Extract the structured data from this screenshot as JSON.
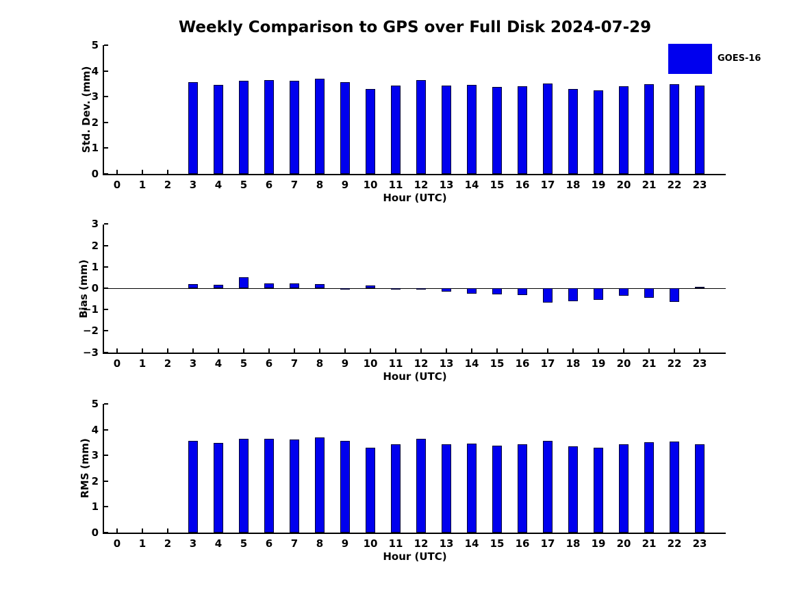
{
  "title": "Weekly Comparison to GPS over Full Disk 2024-07-29",
  "legend": {
    "label": "GOES-16",
    "position": "top-right"
  },
  "colors": {
    "bar": "#0000EE",
    "bar_edge": "#000033",
    "axis": "#000000",
    "background": "#FFFFFF"
  },
  "chart_data": [
    {
      "type": "bar",
      "name": "std-dev-panel",
      "title": "",
      "xlabel": "Hour (UTC)",
      "ylabel": "Std. Dev. (mm)",
      "ylim": [
        0,
        5
      ],
      "yticks": [
        0,
        1,
        2,
        3,
        4,
        5
      ],
      "grid": false,
      "zero_line": false,
      "categories": [
        0,
        1,
        2,
        3,
        4,
        5,
        6,
        7,
        8,
        9,
        10,
        11,
        12,
        13,
        14,
        15,
        16,
        17,
        18,
        19,
        20,
        21,
        22,
        23
      ],
      "values": [
        null,
        null,
        null,
        3.57,
        3.47,
        3.62,
        3.65,
        3.62,
        3.7,
        3.57,
        3.3,
        3.43,
        3.64,
        3.43,
        3.46,
        3.37,
        3.4,
        3.51,
        3.3,
        3.25,
        3.4,
        3.48,
        3.48,
        3.43
      ]
    },
    {
      "type": "bar",
      "name": "bias-panel",
      "title": "",
      "xlabel": "Hour (UTC)",
      "ylabel": "Bias (mm)",
      "ylim": [
        -3,
        3
      ],
      "yticks": [
        -3,
        -2,
        -1,
        0,
        1,
        2,
        3
      ],
      "grid": false,
      "zero_line": true,
      "categories": [
        0,
        1,
        2,
        3,
        4,
        5,
        6,
        7,
        8,
        9,
        10,
        11,
        12,
        13,
        14,
        15,
        16,
        17,
        18,
        19,
        20,
        21,
        22,
        23
      ],
      "values": [
        null,
        null,
        null,
        0.2,
        0.17,
        0.5,
        0.24,
        0.24,
        0.18,
        -0.04,
        0.14,
        -0.04,
        -0.02,
        -0.16,
        -0.25,
        -0.28,
        -0.32,
        -0.66,
        -0.62,
        -0.54,
        -0.34,
        -0.45,
        -0.64,
        0.05
      ]
    },
    {
      "type": "bar",
      "name": "rms-panel",
      "title": "",
      "xlabel": "Hour (UTC)",
      "ylabel": "RMS (mm)",
      "ylim": [
        0,
        5
      ],
      "yticks": [
        0,
        1,
        2,
        3,
        4,
        5
      ],
      "grid": false,
      "zero_line": false,
      "categories": [
        0,
        1,
        2,
        3,
        4,
        5,
        6,
        7,
        8,
        9,
        10,
        11,
        12,
        13,
        14,
        15,
        16,
        17,
        18,
        19,
        20,
        21,
        22,
        23
      ],
      "values": [
        null,
        null,
        null,
        3.56,
        3.49,
        3.64,
        3.64,
        3.62,
        3.7,
        3.56,
        3.29,
        3.42,
        3.64,
        3.43,
        3.45,
        3.38,
        3.43,
        3.56,
        3.35,
        3.29,
        3.43,
        3.5,
        3.53,
        3.43
      ]
    }
  ]
}
